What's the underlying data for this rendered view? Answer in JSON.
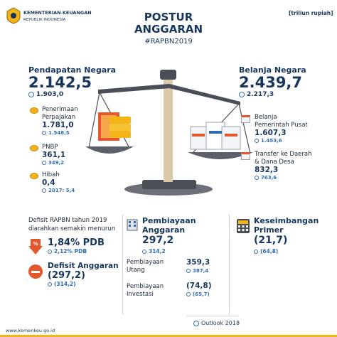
{
  "header": {
    "ministry_line1": "KEMENTERIAN KEUANGAN",
    "ministry_line2": "REPUBLIK INDONESIA",
    "title_line1": "POSTUR",
    "title_line2": "ANGGARAN",
    "hashtag": "#RAPBN2019",
    "unit": "[triliun rupiah]"
  },
  "pendapatan": {
    "title": "Pendapatan Negara",
    "value": "2.142,5",
    "outlook": "1.903,0",
    "items": [
      {
        "label1": "Penerimaan",
        "label2": "Perpajakan",
        "value": "1.781,0",
        "outlook": "1.548,5"
      },
      {
        "label1": "PNBP",
        "label2": "",
        "value": "361,1",
        "outlook": "349,2"
      },
      {
        "label1": "Hibah",
        "label2": "",
        "value": "0,4",
        "outlook": "2017: 5,4"
      }
    ]
  },
  "belanja": {
    "title": "Belanja Negara",
    "value": "2.439,7",
    "outlook": "2.217,3",
    "items": [
      {
        "label1": "Belanja",
        "label2": "Pemerintah Pusat",
        "value": "1.607,3",
        "outlook": "1.453,6"
      },
      {
        "label1": "Transfer ke Daerah",
        "label2": "& Dana Desa",
        "value": "832,3",
        "outlook": "763,6"
      }
    ]
  },
  "defisit": {
    "intro1": "Defisit RAPBN tahun 2019",
    "intro2": "diarahkan semakin menurun",
    "pdb_value": "1,84% PDB",
    "pdb_outlook": "2,12% PDB",
    "anggaran_title": "Defisit Anggaran",
    "anggaran_value": "(297,2)",
    "anggaran_outlook": "(314,2)"
  },
  "pembiayaan": {
    "title1": "Pembiayaan",
    "title2": "Anggaran",
    "value": "297,2",
    "outlook": "314,2",
    "utang_label1": "Pembiayaan",
    "utang_label2": "Utang",
    "utang_value": "359,3",
    "utang_outlook": "387,4",
    "investasi_label1": "Pembiayaan",
    "investasi_label2": "Investasi",
    "investasi_value": "(74,8)",
    "investasi_outlook": "(65,7)"
  },
  "keseimbangan": {
    "title1": "Keseimbangan",
    "title2": "Primer",
    "value": "(21,7)",
    "outlook": "(64,8)"
  },
  "footer": {
    "website": "www.kemenkeu.go.id",
    "legend": "Outlook 2018"
  },
  "colors": {
    "navy": "#17365d",
    "accent_blue": "#2f6db5",
    "gold": "#f2b416",
    "red": "#e2572b",
    "scale_wood": "#d9c9a8",
    "scale_base": "#4a4e57"
  }
}
